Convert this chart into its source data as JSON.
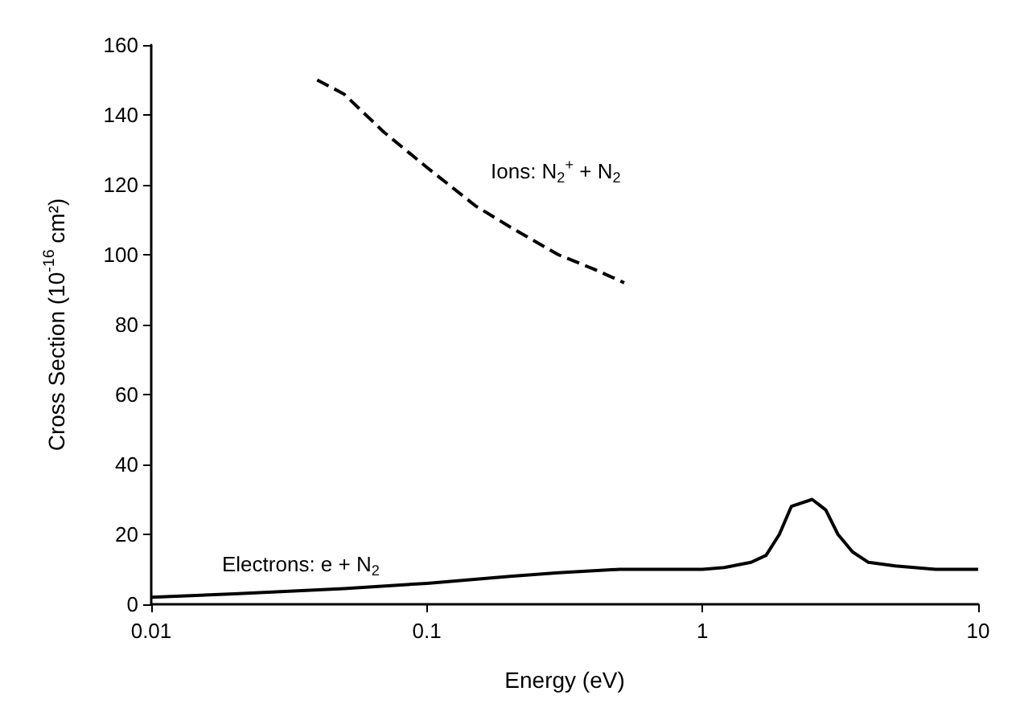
{
  "chart_data": {
    "type": "line",
    "xlabel": "Energy (eV)",
    "ylabel": "Cross Section (10$^{-16}$ cm²)",
    "log": "x",
    "xlim": [
      0.01,
      10
    ],
    "xticks": [
      0.01,
      0.1,
      1,
      10
    ],
    "ylim": [
      0,
      160
    ],
    "yticks": [
      0,
      20,
      40,
      60,
      80,
      100,
      120,
      140,
      160
    ],
    "grid": false,
    "marker": "none",
    "series": [
      {
        "color": "#000000",
        "line_style": "dashed",
        "x": [
          0.04,
          0.05,
          0.07,
          0.1,
          0.15,
          0.2,
          0.3,
          0.4,
          0.52
        ],
        "values": [
          150,
          146,
          135,
          125,
          114,
          108,
          100,
          96,
          92
        ]
      },
      {
        "color": "#000000",
        "line_style": "solid",
        "x": [
          0.01,
          0.02,
          0.05,
          0.1,
          0.2,
          0.3,
          0.5,
          1,
          1.2,
          1.5,
          1.7,
          1.9,
          2.1,
          2.5,
          2.8,
          3.1,
          3.5,
          4,
          5,
          7,
          10
        ],
        "values": [
          2,
          3,
          4.5,
          6,
          8,
          9,
          10,
          10,
          10.5,
          12,
          14,
          20,
          28,
          30,
          27,
          20,
          15,
          12,
          11,
          10,
          10
        ]
      }
    ],
    "annotations": [
      "Ions: N$_{2}$$^{+}$ + N$_{2}$",
      "Electrons: e + N$_{2}$"
    ]
  }
}
